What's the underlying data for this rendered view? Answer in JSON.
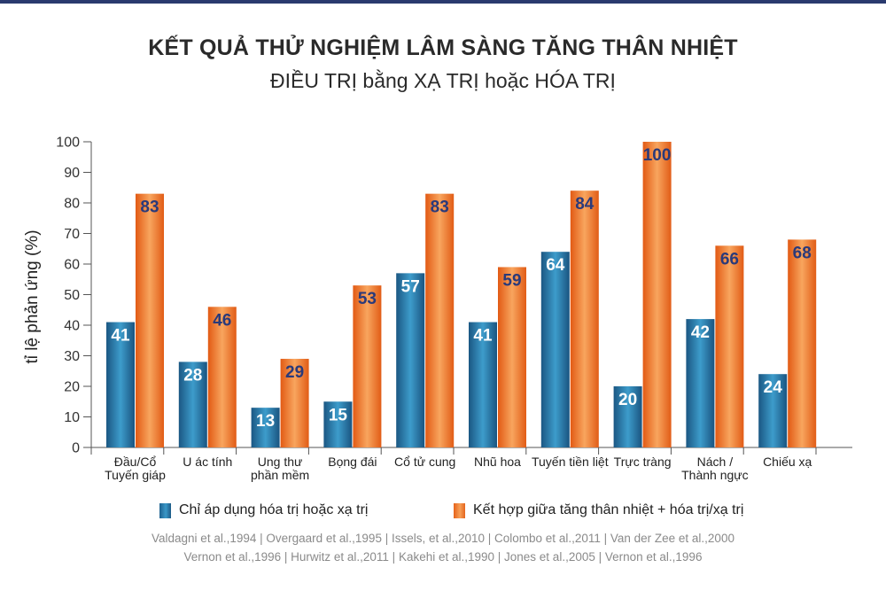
{
  "header": {
    "title": "KẾT QUẢ THỬ NGHIỆM LÂM SÀNG TĂNG THÂN NHIỆT",
    "subtitle": "ĐIỀU TRỊ bằng XẠ TRỊ hoặc HÓA TRỊ"
  },
  "colors": {
    "series1": "#2f86ba",
    "series2": "#f28a3c",
    "value_text": "#2a3a7a",
    "axis": "#555555"
  },
  "chart_data": {
    "type": "bar",
    "ylabel": "tỉ lệ phản ứng (%)",
    "ylim": [
      0,
      100
    ],
    "yticks": [
      0,
      10,
      20,
      30,
      40,
      50,
      60,
      70,
      80,
      90,
      100
    ],
    "categories": [
      [
        "Đầu/Cổ",
        "Tuyến giáp"
      ],
      [
        "U ác tính"
      ],
      [
        "Ung thư",
        "phần mềm"
      ],
      [
        "Bọng đái"
      ],
      [
        "Cổ tử cung"
      ],
      [
        "Nhũ hoa"
      ],
      [
        "Tuyến tiền liệt"
      ],
      [
        "Trực tràng"
      ],
      [
        "Nách /",
        "Thành ngực"
      ],
      [
        "Chiếu xạ"
      ]
    ],
    "series": [
      {
        "name": "Chỉ áp dụng hóa trị hoặc xạ trị",
        "values": [
          41,
          28,
          13,
          15,
          57,
          41,
          64,
          20,
          42,
          24
        ]
      },
      {
        "name": "Kết hợp giữa tăng thân nhiệt + hóa trị/xạ trị",
        "values": [
          83,
          46,
          29,
          53,
          83,
          59,
          84,
          100,
          66,
          68
        ]
      }
    ],
    "legend_position": "bottom",
    "grid": false
  },
  "references": [
    "Valdagni et al.,1994 | Overgaard et al.,1995 | Issels, et al.,2010 | Colombo et al.,2011 | Van der Zee et al.,2000",
    "Vernon et al.,1996 | Hurwitz et al.,2011 | Kakehi et al.,1990 | Jones et al.,2005 | Vernon et al.,1996"
  ]
}
